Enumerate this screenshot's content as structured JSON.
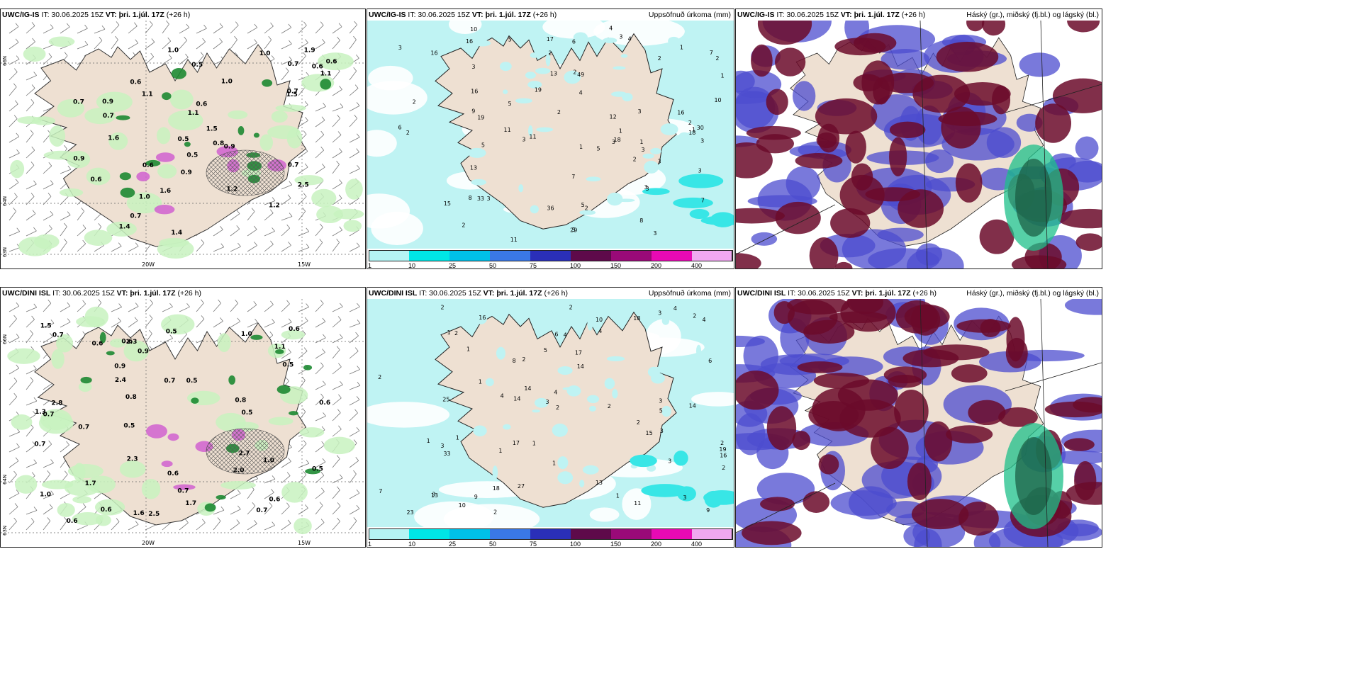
{
  "panels": [
    {
      "title_model": "UWC/IG-IS",
      "title_it": "IT: 30.06.2025 15Z",
      "title_vt_label": "VT:",
      "title_vt": "þri. 1.júl. 17Z",
      "title_lead": "(+26 h)",
      "title_right": ""
    },
    {
      "title_model": "UWC/IG-IS",
      "title_it": "IT: 30.06.2025 15Z",
      "title_vt_label": "VT:",
      "title_vt": "þri. 1.júl. 17Z",
      "title_lead": "(+26 h)",
      "title_right": "Uppsöfnuð úrkoma (mm)"
    },
    {
      "title_model": "UWC/IG-IS",
      "title_it": "IT: 30.06.2025 15Z",
      "title_vt_label": "VT:",
      "title_vt": "þri. 1.júl. 17Z",
      "title_lead": "(+26 h)",
      "title_right": "Háský (gr.), miðský (fj.bl.) og lágský (bl.)"
    },
    {
      "title_model": "UWC/DINI ISL",
      "title_it": "IT: 30.06.2025 15Z",
      "title_vt_label": "VT:",
      "title_vt": "þri. 1.júl. 17Z",
      "title_lead": "(+26 h)",
      "title_right": ""
    },
    {
      "title_model": "UWC/DINI ISL",
      "title_it": "IT: 30.06.2025 15Z",
      "title_vt_label": "VT:",
      "title_vt": "þri. 1.júl. 17Z",
      "title_lead": "(+26 h)",
      "title_right": "Uppsöfnuð úrkoma (mm)"
    },
    {
      "title_model": "UWC/DINI ISL",
      "title_it": "IT: 30.06.2025 15Z",
      "title_vt_label": "VT:",
      "title_vt": "þri. 1.júl. 17Z",
      "title_lead": "(+26 h)",
      "title_right": "Háský (gr.), miðský (fj.bl.) og lágský (bl.)"
    }
  ],
  "axis_labels": {
    "lon_20w": "20W",
    "lon_15w": "15W",
    "lat_66n": "66N",
    "lat_64n": "64N",
    "lat_63n": "63N"
  },
  "colorbar": {
    "ticks": [
      "1",
      "10",
      "25",
      "50",
      "75",
      "100",
      "150",
      "200",
      "400"
    ],
    "colors": [
      "#b5f4f4",
      "#00e6e6",
      "#00c0e8",
      "#3a78e6",
      "#2a2fb8",
      "#5e0a4a",
      "#9a0a78",
      "#e80ab4",
      "#f0a8f0"
    ]
  },
  "colors": {
    "land": "#eee0d2",
    "precip_light": "#bff3f3",
    "precip_mid": "#38e6e6",
    "green_light": "#c8f2c0",
    "green_dark": "#1d8a32",
    "magenta": "#d060d0",
    "cloud_high": "#6b0a2a",
    "cloud_mid": "#4c4ccf",
    "cloud_low": "#1ec08a"
  },
  "top_left_values": [
    "1.4",
    "1.0",
    "0.9",
    "1.1",
    "0.7",
    "2.5",
    "0.9",
    "1.0",
    "0.7",
    "0.6",
    "0.5",
    "0.6",
    "1.1",
    "1.4",
    "1.0",
    "1.2",
    "0.6",
    "1.1",
    "0.6",
    "0.5",
    "0.5",
    "0.7",
    "0.9",
    "0.6",
    "0.6",
    "1.5",
    "1.2",
    "1.0",
    "0.9",
    "1.5",
    "0.8",
    "1.9",
    "1.6",
    "0.7",
    "1.6",
    "0.7",
    "0.7"
  ],
  "bottom_left_values": [
    "0.7",
    "1.0",
    "0.7",
    "0.6",
    "1.0",
    "0.6",
    "0.6",
    "0.5",
    "1.7",
    "0.7",
    "0.6",
    "0.7",
    "0.7",
    "0.9",
    "0.5",
    "0.6",
    "0.8",
    "0.5",
    "0.6",
    "2.0",
    "0.7",
    "1.0",
    "2.7",
    "0.8",
    "0.6",
    "0.5",
    "0.9",
    "0.5",
    "0.7",
    "0.6",
    "1.1",
    "1.5",
    "1.6",
    "2.5",
    "1.3",
    "2.3",
    "1.7",
    "1.3",
    "2.8",
    "0.5",
    "2.4"
  ],
  "top_mid_values": [
    "2",
    "3",
    "3",
    "2",
    "3",
    "3",
    "3",
    "2",
    "3",
    "3",
    "5",
    "4",
    "3",
    "5",
    "2",
    "6",
    "3",
    "1",
    "1",
    "4",
    "15",
    "16",
    "19",
    "18",
    "16",
    "7",
    "11",
    "5",
    "6",
    "5",
    "3",
    "7",
    "3",
    "2",
    "1",
    "2",
    "2",
    "3",
    "1",
    "5",
    "2",
    "1",
    "11",
    "3",
    "2",
    "36",
    "17",
    "8",
    "16",
    "10",
    "12",
    "18",
    "29",
    "33",
    "30",
    "49",
    "19",
    "13",
    "11",
    "13",
    "9",
    "16",
    "8",
    "10",
    "4",
    "7",
    "5",
    "3",
    "2",
    "2",
    "1"
  ],
  "bottom_mid_values": [
    "1",
    "1",
    "3",
    "2",
    "2",
    "4",
    "3",
    "2",
    "1",
    "17",
    "14",
    "18",
    "16",
    "14",
    "7",
    "4",
    "4",
    "3",
    "27",
    "17",
    "6",
    "9",
    "2",
    "2",
    "5",
    "4",
    "4",
    "2",
    "3",
    "1",
    "3",
    "1",
    "2",
    "1",
    "3",
    "1",
    "2",
    "2",
    "3",
    "2",
    "1",
    "2",
    "5",
    "6",
    "8",
    "9",
    "23",
    "18",
    "11",
    "19",
    "13",
    "25",
    "16",
    "33",
    "13",
    "14",
    "15",
    "14",
    "10",
    "10",
    "3",
    "4",
    "2",
    "1"
  ]
}
